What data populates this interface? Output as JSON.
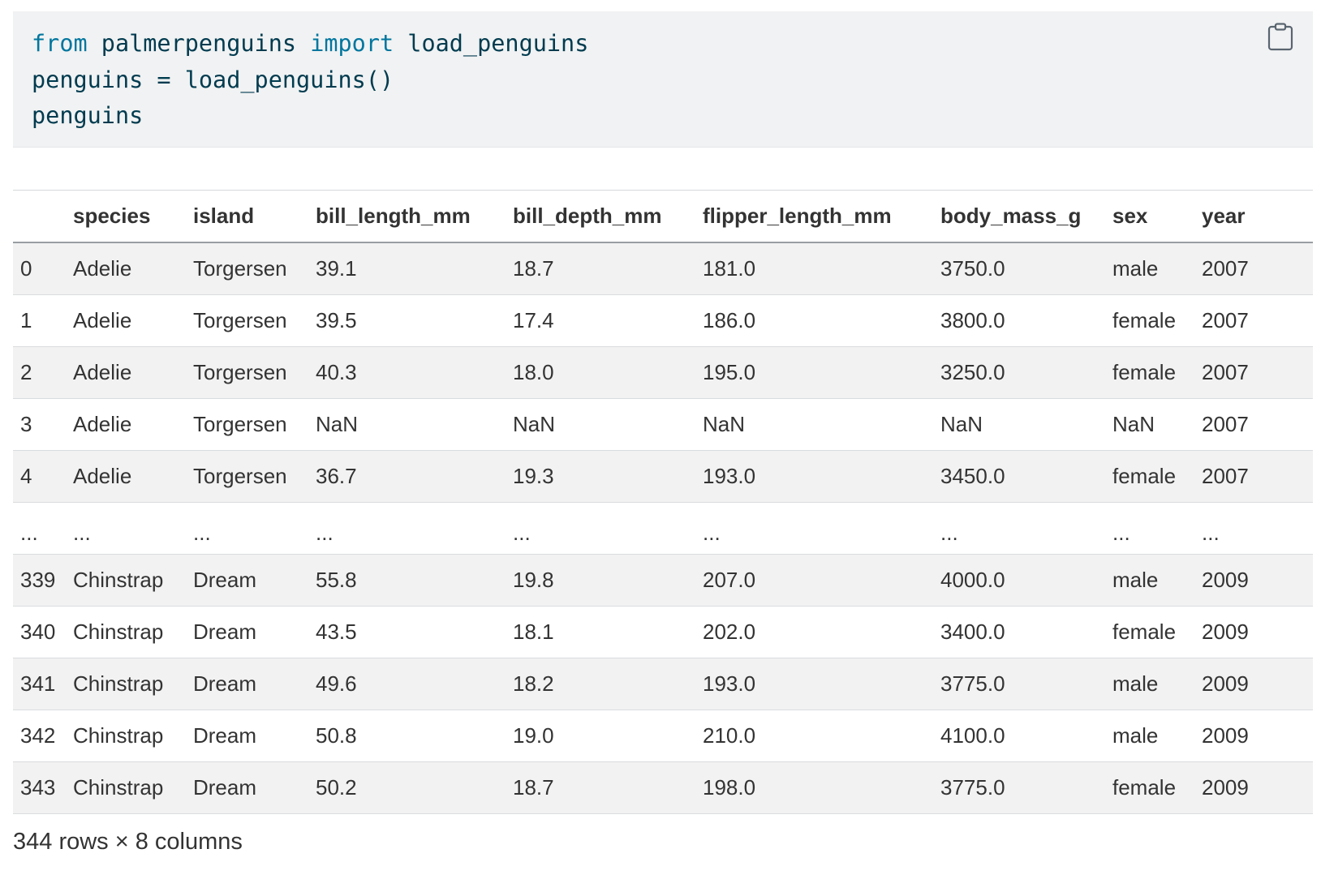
{
  "code_cell": {
    "lines": [
      [
        {
          "t": "from",
          "k": true
        },
        {
          "t": " palmerpenguins ",
          "k": false
        },
        {
          "t": "import",
          "k": true
        },
        {
          "t": " load_penguins",
          "k": false
        }
      ],
      [
        {
          "t": "penguins = load_penguins()",
          "k": false
        }
      ],
      [
        {
          "t": "penguins",
          "k": false
        }
      ]
    ],
    "copy_icon": "clipboard-icon"
  },
  "dataframe": {
    "columns": [
      "",
      "species",
      "island",
      "bill_length_mm",
      "bill_depth_mm",
      "flipper_length_mm",
      "body_mass_g",
      "sex",
      "year"
    ],
    "rows": [
      [
        "0",
        "Adelie",
        "Torgersen",
        "39.1",
        "18.7",
        "181.0",
        "3750.0",
        "male",
        "2007"
      ],
      [
        "1",
        "Adelie",
        "Torgersen",
        "39.5",
        "17.4",
        "186.0",
        "3800.0",
        "female",
        "2007"
      ],
      [
        "2",
        "Adelie",
        "Torgersen",
        "40.3",
        "18.0",
        "195.0",
        "3250.0",
        "female",
        "2007"
      ],
      [
        "3",
        "Adelie",
        "Torgersen",
        "NaN",
        "NaN",
        "NaN",
        "NaN",
        "NaN",
        "2007"
      ],
      [
        "4",
        "Adelie",
        "Torgersen",
        "36.7",
        "19.3",
        "193.0",
        "3450.0",
        "female",
        "2007"
      ],
      [
        "...",
        "...",
        "...",
        "...",
        "...",
        "...",
        "...",
        "...",
        "..."
      ],
      [
        "339",
        "Chinstrap",
        "Dream",
        "55.8",
        "19.8",
        "207.0",
        "4000.0",
        "male",
        "2009"
      ],
      [
        "340",
        "Chinstrap",
        "Dream",
        "43.5",
        "18.1",
        "202.0",
        "3400.0",
        "female",
        "2009"
      ],
      [
        "341",
        "Chinstrap",
        "Dream",
        "49.6",
        "18.2",
        "193.0",
        "3775.0",
        "male",
        "2009"
      ],
      [
        "342",
        "Chinstrap",
        "Dream",
        "50.8",
        "19.0",
        "210.0",
        "4100.0",
        "male",
        "2009"
      ],
      [
        "343",
        "Chinstrap",
        "Dream",
        "50.2",
        "18.7",
        "198.0",
        "3775.0",
        "female",
        "2009"
      ]
    ],
    "shape_caption": "344 rows × 8 columns"
  },
  "colors": {
    "code_background": "#f1f2f3",
    "code_text": "#003b4f",
    "code_keyword": "#00769e",
    "table_text": "#333333",
    "striped_row": "#f2f2f2"
  }
}
